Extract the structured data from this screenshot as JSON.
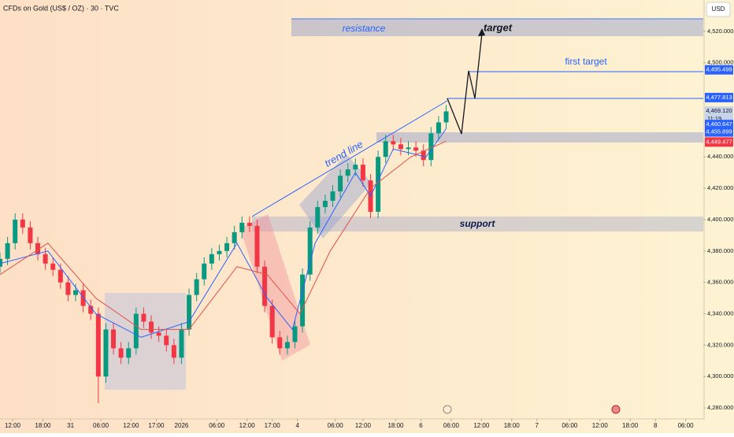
{
  "chart_data": {
    "type": "candlestick",
    "title": "CFDs on Gold (US$ / OZ) · 30 · TVC",
    "currency": "USD",
    "up_color": "#089981",
    "down_color": "#f23645",
    "x": [
      0,
      3,
      6,
      9,
      12,
      15,
      18,
      21,
      24,
      27,
      30,
      33,
      36,
      39,
      42,
      45,
      48,
      51,
      54,
      57,
      60,
      63,
      66,
      69,
      72,
      75,
      78,
      81,
      84,
      87,
      90,
      93,
      96,
      99,
      102,
      105,
      108,
      111,
      114,
      117,
      120,
      123,
      126,
      129,
      132,
      135,
      138,
      141,
      144,
      147,
      150,
      153,
      156,
      159,
      162,
      165,
      168,
      171,
      174,
      177
    ],
    "open": [
      4370,
      4375,
      4385,
      4400,
      4395,
      4385,
      4378,
      4372,
      4368,
      4360,
      4352,
      4355,
      4345,
      4340,
      4300,
      4330,
      4318,
      4312,
      4318,
      4340,
      4335,
      4328,
      4326,
      4320,
      4312,
      4330,
      4352,
      4362,
      4372,
      4378,
      4380,
      4385,
      4392,
      4398,
      4396,
      4370,
      4345,
      4325,
      4318,
      4322,
      4332,
      4365,
      4395,
      4408,
      4412,
      4418,
      4428,
      4432,
      4435,
      4425,
      4405,
      4440,
      4450,
      4448,
      4445,
      4446,
      4444,
      4438,
      4455,
      4462
    ],
    "high": [
      4379,
      4389,
      4404,
      4404,
      4399,
      4389,
      4382,
      4376,
      4372,
      4364,
      4359,
      4359,
      4349,
      4344,
      4334,
      4334,
      4322,
      4322,
      4344,
      4344,
      4339,
      4332,
      4330,
      4324,
      4334,
      4356,
      4366,
      4376,
      4382,
      4384,
      4389,
      4396,
      4402,
      4402,
      4400,
      4374,
      4349,
      4329,
      4326,
      4336,
      4369,
      4399,
      4412,
      4416,
      4422,
      4432,
      4436,
      4439,
      4439,
      4429,
      4444,
      4454,
      4454,
      4452,
      4450,
      4450,
      4448,
      4459,
      4466,
      4473
    ],
    "low": [
      4366,
      4371,
      4381,
      4391,
      4381,
      4374,
      4368,
      4364,
      4356,
      4348,
      4348,
      4341,
      4336,
      4283,
      4296,
      4314,
      4308,
      4308,
      4314,
      4331,
      4324,
      4322,
      4316,
      4308,
      4308,
      4326,
      4348,
      4358,
      4368,
      4374,
      4376,
      4381,
      4388,
      4392,
      4366,
      4341,
      4321,
      4314,
      4314,
      4318,
      4328,
      4361,
      4391,
      4404,
      4408,
      4414,
      4424,
      4428,
      4421,
      4401,
      4401,
      4436,
      4444,
      4441,
      4441,
      4440,
      4434,
      4434,
      4451,
      4458
    ],
    "close": [
      4375,
      4385,
      4400,
      4395,
      4385,
      4378,
      4372,
      4368,
      4360,
      4352,
      4355,
      4345,
      4340,
      4300,
      4330,
      4318,
      4312,
      4318,
      4340,
      4335,
      4328,
      4326,
      4320,
      4312,
      4330,
      4352,
      4362,
      4372,
      4378,
      4380,
      4385,
      4392,
      4398,
      4396,
      4370,
      4345,
      4325,
      4318,
      4322,
      4332,
      4365,
      4395,
      4408,
      4412,
      4418,
      4428,
      4432,
      4435,
      4425,
      4405,
      4440,
      4450,
      4448,
      4445,
      4446,
      4444,
      4438,
      4455,
      4462,
      4469
    ],
    "series": [
      {
        "color": "#2962ff",
        "x": [
          0,
          19,
          38,
          56,
          75,
          94,
          106,
          116,
          125,
          141,
          147,
          156,
          169,
          177
        ],
        "values": [
          4372,
          4380,
          4340,
          4325,
          4335,
          4385,
          4350,
          4330,
          4385,
          4430,
          4415,
          4445,
          4440,
          4458
        ]
      },
      {
        "color": "#e0524a",
        "x": [
          0,
          19,
          38,
          56,
          75,
          94,
          106,
          119,
          131,
          147,
          163,
          177
        ],
        "values": [
          4365,
          4385,
          4350,
          4330,
          4330,
          4370,
          4365,
          4340,
          4380,
          4420,
          4440,
          4450
        ]
      }
    ],
    "xlim": [
      0,
      279
    ],
    "ylim": [
      4273,
      4540
    ],
    "xticks": [
      {
        "value": 5,
        "label": "12:00"
      },
      {
        "value": 17,
        "label": "18:00"
      },
      {
        "value": 28,
        "label": "31"
      },
      {
        "value": 40,
        "label": "06:00"
      },
      {
        "value": 52,
        "label": "12:00"
      },
      {
        "value": 62,
        "label": "17:00"
      },
      {
        "value": 72,
        "label": "2026"
      },
      {
        "value": 86,
        "label": "06:00"
      },
      {
        "value": 98,
        "label": "12:00"
      },
      {
        "value": 108,
        "label": "17:00"
      },
      {
        "value": 118,
        "label": "4"
      },
      {
        "value": 133,
        "label": "06:00"
      },
      {
        "value": 144,
        "label": "12:00"
      },
      {
        "value": 157,
        "label": "18:00"
      },
      {
        "value": 167,
        "label": "6"
      },
      {
        "value": 179,
        "label": "06:00"
      },
      {
        "value": 191,
        "label": "12:00"
      },
      {
        "value": 203,
        "label": "18:00"
      },
      {
        "value": 213,
        "label": "7"
      },
      {
        "value": 226,
        "label": "06:00"
      },
      {
        "value": 238,
        "label": "12:00"
      },
      {
        "value": 250,
        "label": "18:00"
      },
      {
        "value": 260,
        "label": "8"
      },
      {
        "value": 272,
        "label": "06:00"
      }
    ],
    "yticks": [
      {
        "value": 4280,
        "label": "4,280.000"
      },
      {
        "value": 4300,
        "label": "4,300.000"
      },
      {
        "value": 4320,
        "label": "4,320.000"
      },
      {
        "value": 4340,
        "label": "4,340.000"
      },
      {
        "value": 4360,
        "label": "4,360.000"
      },
      {
        "value": 4380,
        "label": "4,380.000"
      },
      {
        "value": 4400,
        "label": "4,400.000"
      },
      {
        "value": 4420,
        "label": "4,420.000"
      },
      {
        "value": 4440,
        "label": "4,440.000"
      },
      {
        "value": 4500,
        "label": "4,500.000"
      },
      {
        "value": 4520,
        "label": "4,520.000"
      }
    ],
    "price_labels": [
      {
        "value": 4495.499,
        "label": "4,495.499",
        "color": "#2962ff"
      },
      {
        "value": 4477.813,
        "label": "4,477.813",
        "color": "#2962ff"
      },
      {
        "value": 4469.12,
        "label": "4,469.120",
        "sub": "11:19",
        "color": "#c7d3ea"
      },
      {
        "value": 4460.647,
        "label": "4,460.647",
        "color": "#2962ff"
      },
      {
        "value": 4455.899,
        "label": "4,455.899",
        "color": "#2962ff"
      },
      {
        "value": 4449.477,
        "label": "4,449.477",
        "color": "#f23645"
      }
    ],
    "annotations": {
      "resistance": "resistance",
      "target": "target",
      "first_target": "first target",
      "trend_line": "trend line",
      "support": "support"
    }
  }
}
